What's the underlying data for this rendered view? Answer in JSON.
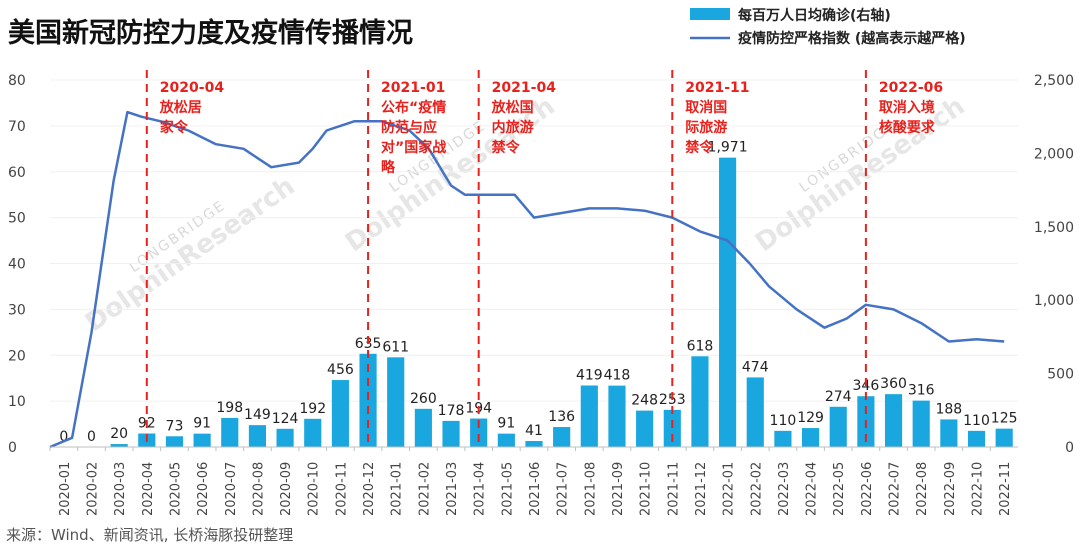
{
  "chart_data": {
    "type": "bar",
    "title": "美国新冠防控力度及疫情传播情况",
    "source": "来源：Wind、新闻资讯, 长桥海豚投研整理",
    "watermark": [
      "LONGBRIDGE",
      "DolphinResearch"
    ],
    "categories": [
      "2020-01",
      "2020-02",
      "2020-03",
      "2020-04",
      "2020-05",
      "2020-06",
      "2020-07",
      "2020-08",
      "2020-09",
      "2020-10",
      "2020-11",
      "2020-12",
      "2021-01",
      "2021-02",
      "2021-03",
      "2021-04",
      "2021-05",
      "2021-06",
      "2021-07",
      "2021-08",
      "2021-09",
      "2021-10",
      "2021-11",
      "2021-12",
      "2022-01",
      "2022-02",
      "2022-03",
      "2022-04",
      "2022-05",
      "2022-06",
      "2022-07",
      "2022-08",
      "2022-09",
      "2022-10",
      "2022-11"
    ],
    "series": [
      {
        "name": "每百万人日均确诊(右轴)",
        "type": "bar",
        "axis": "right",
        "color": "#1aa7e0",
        "values": [
          0,
          0,
          20,
          92,
          73,
          91,
          198,
          149,
          124,
          192,
          456,
          635,
          611,
          260,
          178,
          194,
          91,
          41,
          136,
          419,
          418,
          248,
          253,
          618,
          1971,
          474,
          110,
          129,
          274,
          346,
          360,
          316,
          188,
          110,
          125
        ],
        "labels": [
          "0",
          "0",
          "20",
          "92",
          "73",
          "91",
          "198",
          "149",
          "124",
          "192",
          "456",
          "635",
          "611",
          "260",
          "178",
          "194",
          "91",
          "41",
          "136",
          "419",
          "418",
          "248",
          "253",
          "618",
          "1,971",
          "474",
          "110",
          "129",
          "274",
          "346",
          "360",
          "316",
          "188",
          "110",
          "125"
        ]
      },
      {
        "name": "疫情防控严格指数 (越高表示越严格)",
        "type": "line",
        "axis": "left",
        "color": "#4472c4",
        "points": [
          [
            0,
            0
          ],
          [
            0.8,
            2
          ],
          [
            1.5,
            25
          ],
          [
            2.3,
            58
          ],
          [
            2.8,
            73
          ],
          [
            3.3,
            72
          ],
          [
            4,
            71
          ],
          [
            5,
            69
          ],
          [
            6,
            66
          ],
          [
            7,
            65
          ],
          [
            8,
            61
          ],
          [
            9,
            62
          ],
          [
            9.5,
            65
          ],
          [
            10,
            69
          ],
          [
            11,
            71
          ],
          [
            12,
            71
          ],
          [
            13,
            69
          ],
          [
            13.7,
            65
          ],
          [
            14.5,
            57
          ],
          [
            15,
            55
          ],
          [
            16,
            55
          ],
          [
            16.8,
            55
          ],
          [
            17.5,
            50
          ],
          [
            18.5,
            51
          ],
          [
            19.5,
            52
          ],
          [
            20.5,
            52
          ],
          [
            21.5,
            51.5
          ],
          [
            22.5,
            50
          ],
          [
            23.5,
            47
          ],
          [
            24.5,
            45
          ],
          [
            25.3,
            40
          ],
          [
            26,
            35
          ],
          [
            27,
            30
          ],
          [
            28,
            26
          ],
          [
            28.8,
            28
          ],
          [
            29.5,
            31
          ],
          [
            30.5,
            30
          ],
          [
            31.5,
            27
          ],
          [
            32.5,
            23
          ],
          [
            33.5,
            23.5
          ],
          [
            34.5,
            23
          ]
        ]
      }
    ],
    "y_left": {
      "ylim": [
        0,
        80
      ],
      "ticks": [
        "0",
        "10",
        "20",
        "30",
        "40",
        "50",
        "60",
        "70",
        "80"
      ]
    },
    "y_right": {
      "ylim": [
        0,
        2500
      ],
      "ticks": [
        "0",
        "500",
        "1,000",
        "1,500",
        "2,000",
        "2,500"
      ]
    },
    "legend_position": "top-right",
    "annotations": [
      {
        "index": 3,
        "lines": [
          "2020-04",
          "放松居",
          "家令"
        ]
      },
      {
        "index": 11,
        "lines": [
          "2021-01",
          "公布“疫情",
          "防范与应",
          "对”国家战",
          "略"
        ]
      },
      {
        "index": 15,
        "lines": [
          "2021-04",
          "放松国",
          "内旅游",
          "禁令"
        ]
      },
      {
        "index": 22,
        "lines": [
          "2021-11",
          "取消国",
          "际旅游",
          "禁令"
        ]
      },
      {
        "index": 29,
        "lines": [
          "2022-06",
          "取消入境",
          "核酸要求"
        ]
      }
    ],
    "annotation_color": "#e8211d"
  }
}
